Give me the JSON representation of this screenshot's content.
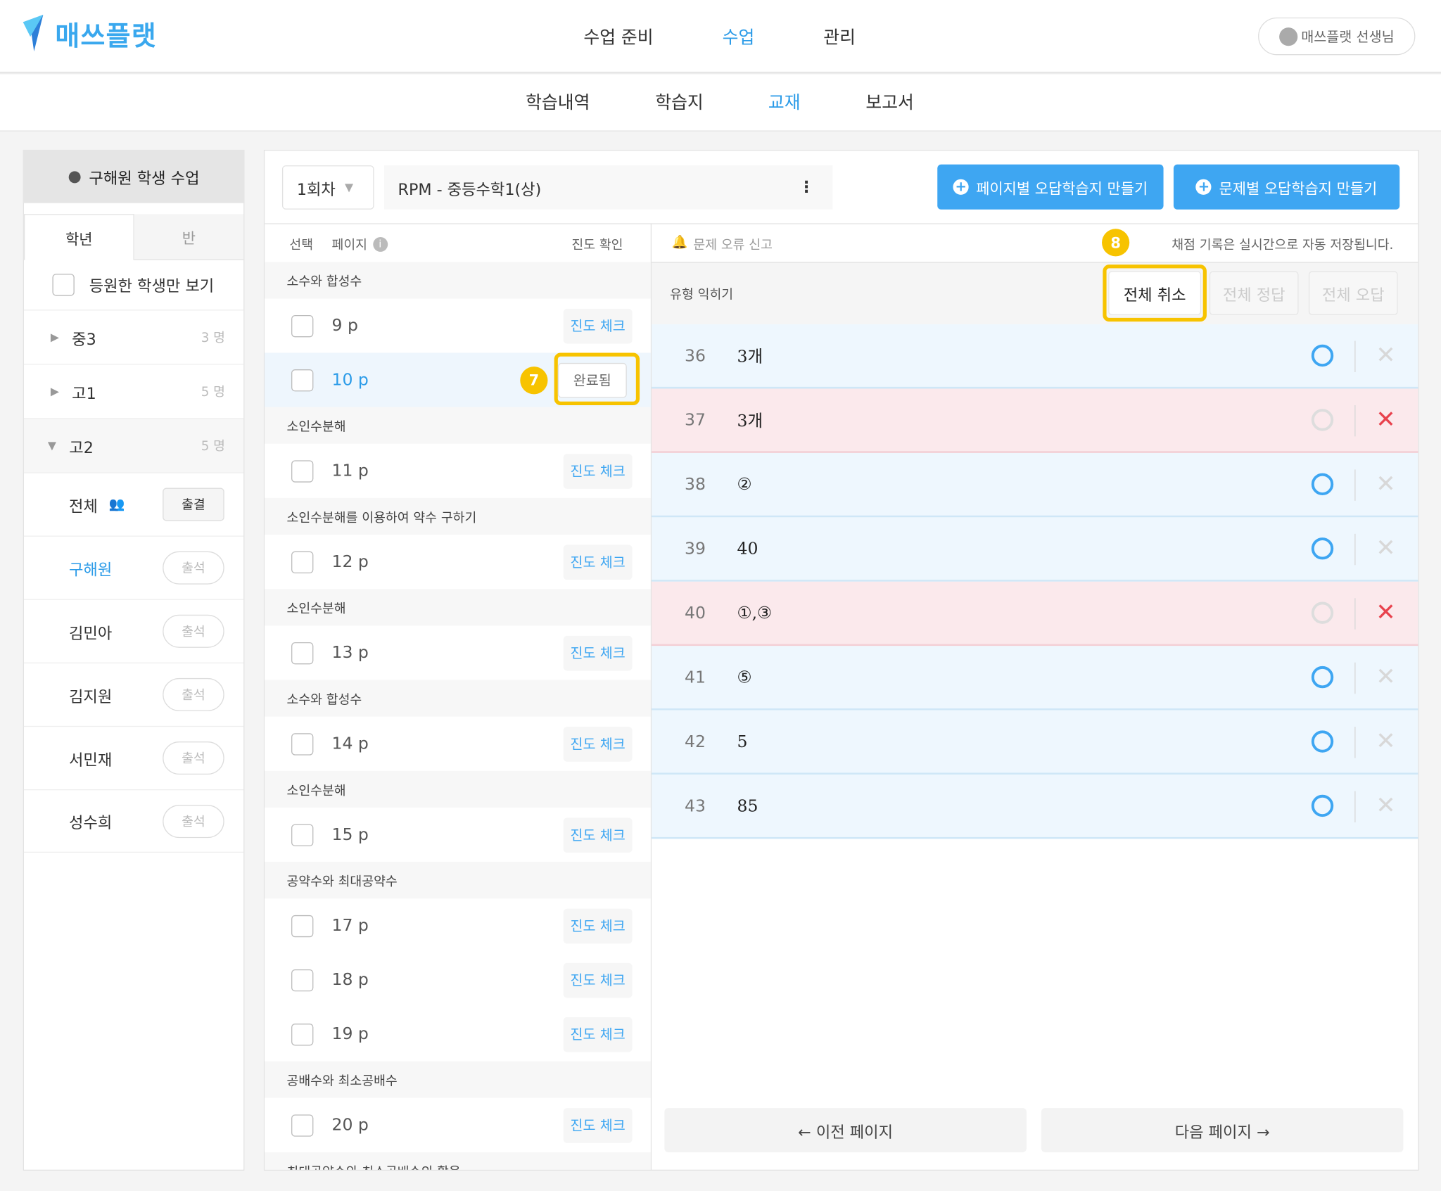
{
  "header": {
    "logo": "매쓰플랫",
    "nav": [
      {
        "label": "수업 준비",
        "active": false
      },
      {
        "label": "수업",
        "active": true
      },
      {
        "label": "관리",
        "active": false
      }
    ],
    "user": "매쓰플랫 선생님"
  },
  "subnav": [
    {
      "label": "학습내역",
      "active": false
    },
    {
      "label": "학습지",
      "active": false
    },
    {
      "label": "교재",
      "active": true
    },
    {
      "label": "보고서",
      "active": false
    }
  ],
  "sidebar": {
    "title": "구해원 학생 수업",
    "tabs": [
      "학년",
      "반"
    ],
    "enrolled_only": "등원한 학생만 보기",
    "groups": [
      {
        "name": "중3",
        "count": "3 명",
        "expanded": false
      },
      {
        "name": "고1",
        "count": "5 명",
        "expanded": false
      },
      {
        "name": "고2",
        "count": "5 명",
        "expanded": true
      }
    ],
    "all_label": "전체",
    "attendance_all": "출결",
    "students": [
      {
        "name": "구해원",
        "active": true,
        "btn": "출석"
      },
      {
        "name": "김민아",
        "active": false,
        "btn": "출석"
      },
      {
        "name": "김지원",
        "active": false,
        "btn": "출석"
      },
      {
        "name": "서민재",
        "active": false,
        "btn": "출석"
      },
      {
        "name": "성수희",
        "active": false,
        "btn": "출석"
      }
    ]
  },
  "toolbar": {
    "session": "1회차",
    "book": "RPM - 중등수학1(상)",
    "btn_page": "페이지별 오답학습지 만들기",
    "btn_problem": "문제별 오답학습지 만들기"
  },
  "pages": {
    "col_select": "선택",
    "col_page": "페이지",
    "col_progress": "진도 확인",
    "items": [
      {
        "type": "section",
        "label": "소수와 합성수"
      },
      {
        "type": "page",
        "label": "9 p",
        "btn": "진도 체크"
      },
      {
        "type": "page",
        "label": "10 p",
        "btn": "완료됨",
        "selected": true
      },
      {
        "type": "section",
        "label": "소인수분해"
      },
      {
        "type": "page",
        "label": "11 p",
        "btn": "진도 체크"
      },
      {
        "type": "section",
        "label": "소인수분해를 이용하여 약수 구하기"
      },
      {
        "type": "page",
        "label": "12 p",
        "btn": "진도 체크"
      },
      {
        "type": "section",
        "label": "소인수분해"
      },
      {
        "type": "page",
        "label": "13 p",
        "btn": "진도 체크"
      },
      {
        "type": "section",
        "label": "소수와 합성수"
      },
      {
        "type": "page",
        "label": "14 p",
        "btn": "진도 체크"
      },
      {
        "type": "section",
        "label": "소인수분해"
      },
      {
        "type": "page",
        "label": "15 p",
        "btn": "진도 체크"
      },
      {
        "type": "section",
        "label": "공약수와 최대공약수"
      },
      {
        "type": "page",
        "label": "17 p",
        "btn": "진도 체크"
      },
      {
        "type": "page",
        "label": "18 p",
        "btn": "진도 체크"
      },
      {
        "type": "page",
        "label": "19 p",
        "btn": "진도 체크"
      },
      {
        "type": "section",
        "label": "공배수와 최소공배수"
      },
      {
        "type": "page",
        "label": "20 p",
        "btn": "진도 체크"
      },
      {
        "type": "section",
        "label": "최대공약수와 최소공배수의 활용"
      }
    ]
  },
  "grading": {
    "report": "문제 오류 신고",
    "autosave": "채점 기록은 실시간으로 자동 저장됩니다.",
    "section": "유형 익히기",
    "cancel_all": "전체 취소",
    "all_correct": "전체 정답",
    "all_wrong": "전체 오답",
    "rows": [
      {
        "num": "36",
        "answer": "3개",
        "result": "correct"
      },
      {
        "num": "37",
        "answer": "3개",
        "result": "wrong"
      },
      {
        "num": "38",
        "answer": "②",
        "result": "correct"
      },
      {
        "num": "39",
        "answer": "40",
        "result": "correct"
      },
      {
        "num": "40",
        "answer": "①,③",
        "result": "wrong"
      },
      {
        "num": "41",
        "answer": "⑤",
        "result": "correct"
      },
      {
        "num": "42",
        "answer": "5",
        "result": "correct"
      },
      {
        "num": "43",
        "answer": "85",
        "result": "correct"
      }
    ],
    "prev": "← 이전 페이지",
    "next": "다음 페이지 →"
  },
  "annotations": {
    "badge7": "7",
    "badge8": "8"
  },
  "colors": {
    "accent": "#3ea6f2",
    "highlight": "#f7c300",
    "wrong": "#e8424d"
  }
}
